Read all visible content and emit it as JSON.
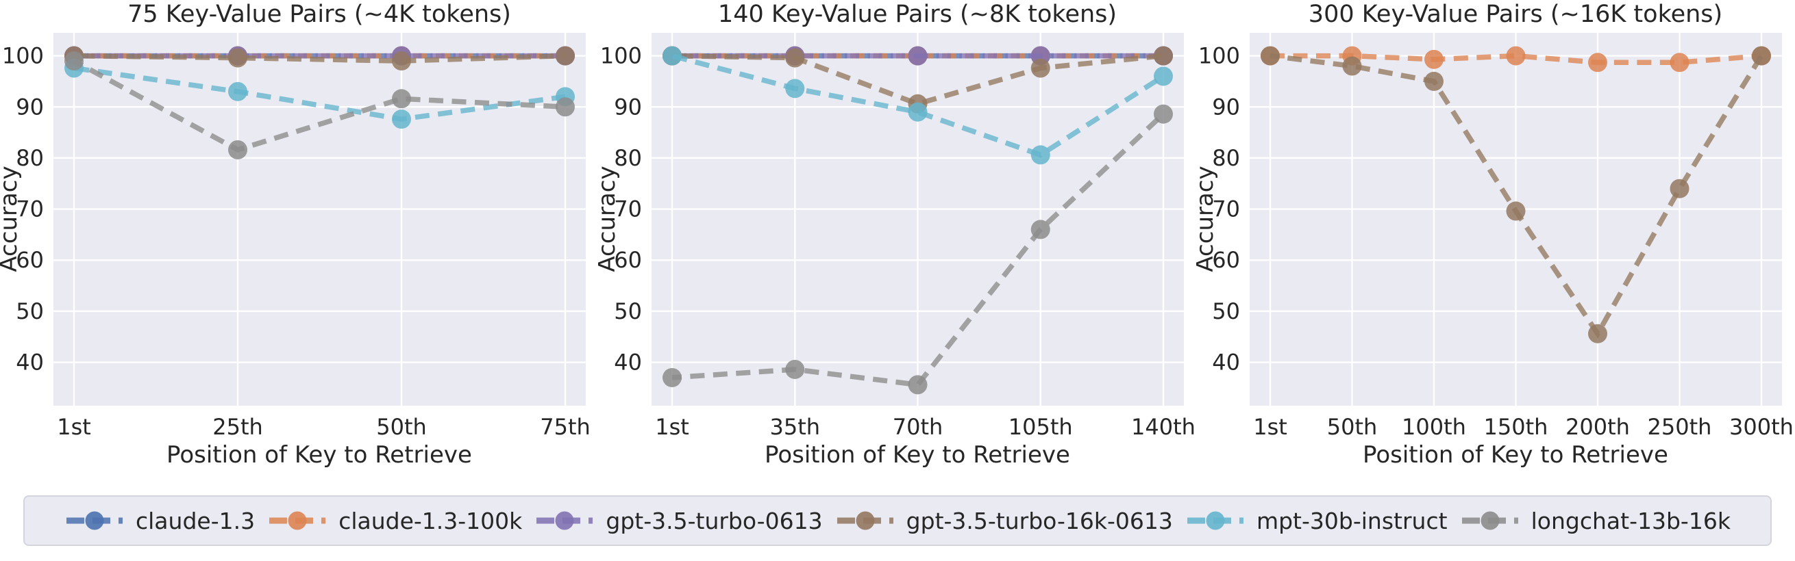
{
  "figure": {
    "background": "#ffffff",
    "panel_background": "#eaeaf2",
    "grid_color": "#ffffff",
    "text_color": "#262626"
  },
  "legend": {
    "entries": [
      {
        "label": "claude-1.3",
        "color": "#4c72b0"
      },
      {
        "label": "claude-1.3-100k",
        "color": "#dd8452"
      },
      {
        "label": "gpt-3.5-turbo-0613",
        "color": "#8172b3"
      },
      {
        "label": "gpt-3.5-turbo-16k-0613",
        "color": "#937860"
      },
      {
        "label": "mpt-30b-instruct",
        "color": "#64b5cd"
      },
      {
        "label": "longchat-13b-16k",
        "color": "#8c8c8c"
      }
    ]
  },
  "chart_data": [
    {
      "type": "line",
      "title": "75 Key-Value Pairs (~4K tokens)",
      "xlabel": "Position of Key to Retrieve",
      "ylabel": "Accuracy",
      "categories": [
        "1st",
        "25th",
        "50th",
        "75th"
      ],
      "yticks": [
        40,
        50,
        60,
        70,
        80,
        90,
        100
      ],
      "ylim": [
        31.5,
        104.5
      ],
      "grid": true,
      "legend_position": "below-figure",
      "series": [
        {
          "name": "claude-1.3",
          "color": "#4c72b0",
          "values": [
            100,
            100,
            100,
            100
          ]
        },
        {
          "name": "claude-1.3-100k",
          "color": "#dd8452",
          "values": [
            100,
            100,
            100,
            100
          ]
        },
        {
          "name": "gpt-3.5-turbo-0613",
          "color": "#8172b3",
          "values": [
            100,
            100,
            100,
            100
          ]
        },
        {
          "name": "gpt-3.5-turbo-16k-0613",
          "color": "#937860",
          "values": [
            100,
            99.6,
            99,
            100
          ]
        },
        {
          "name": "mpt-30b-instruct",
          "color": "#64b5cd",
          "values": [
            97.6,
            93,
            87.6,
            92
          ]
        },
        {
          "name": "longchat-13b-16k",
          "color": "#8c8c8c",
          "values": [
            99,
            81.6,
            91.6,
            90
          ]
        }
      ]
    },
    {
      "type": "line",
      "title": "140 Key-Value Pairs (~8K tokens)",
      "xlabel": "Position of Key to Retrieve",
      "ylabel": "Accuracy",
      "categories": [
        "1st",
        "35th",
        "70th",
        "105th",
        "140th"
      ],
      "yticks": [
        40,
        50,
        60,
        70,
        80,
        90,
        100
      ],
      "ylim": [
        31.5,
        104.5
      ],
      "grid": true,
      "legend_position": "below-figure",
      "series": [
        {
          "name": "claude-1.3",
          "color": "#4c72b0",
          "values": [
            100,
            100,
            100,
            100,
            100
          ]
        },
        {
          "name": "claude-1.3-100k",
          "color": "#dd8452",
          "values": [
            100,
            100,
            100,
            100,
            100
          ]
        },
        {
          "name": "gpt-3.5-turbo-0613",
          "color": "#8172b3",
          "values": [
            100,
            100,
            100,
            100,
            100
          ]
        },
        {
          "name": "gpt-3.5-turbo-16k-0613",
          "color": "#937860",
          "values": [
            100,
            99.6,
            90.6,
            97.6,
            100
          ]
        },
        {
          "name": "mpt-30b-instruct",
          "color": "#64b5cd",
          "values": [
            100,
            93.6,
            89,
            80.6,
            96
          ]
        },
        {
          "name": "longchat-13b-16k",
          "color": "#8c8c8c",
          "values": [
            37,
            38.6,
            35.6,
            66,
            88.6
          ]
        }
      ]
    },
    {
      "type": "line",
      "title": "300 Key-Value Pairs (~16K tokens)",
      "xlabel": "Position of Key to Retrieve",
      "ylabel": "Accuracy",
      "categories": [
        "1st",
        "50th",
        "100th",
        "150th",
        "200th",
        "250th",
        "300th"
      ],
      "yticks": [
        40,
        50,
        60,
        70,
        80,
        90,
        100
      ],
      "ylim": [
        31.5,
        104.5
      ],
      "grid": true,
      "legend_position": "below-figure",
      "series": [
        {
          "name": "claude-1.3-100k",
          "color": "#dd8452",
          "values": [
            100,
            100,
            99.3,
            100,
            98.7,
            98.7,
            100
          ]
        },
        {
          "name": "gpt-3.5-turbo-16k-0613",
          "color": "#937860",
          "values": [
            100,
            98,
            95,
            69.6,
            45.6,
            74,
            100
          ]
        }
      ]
    }
  ]
}
